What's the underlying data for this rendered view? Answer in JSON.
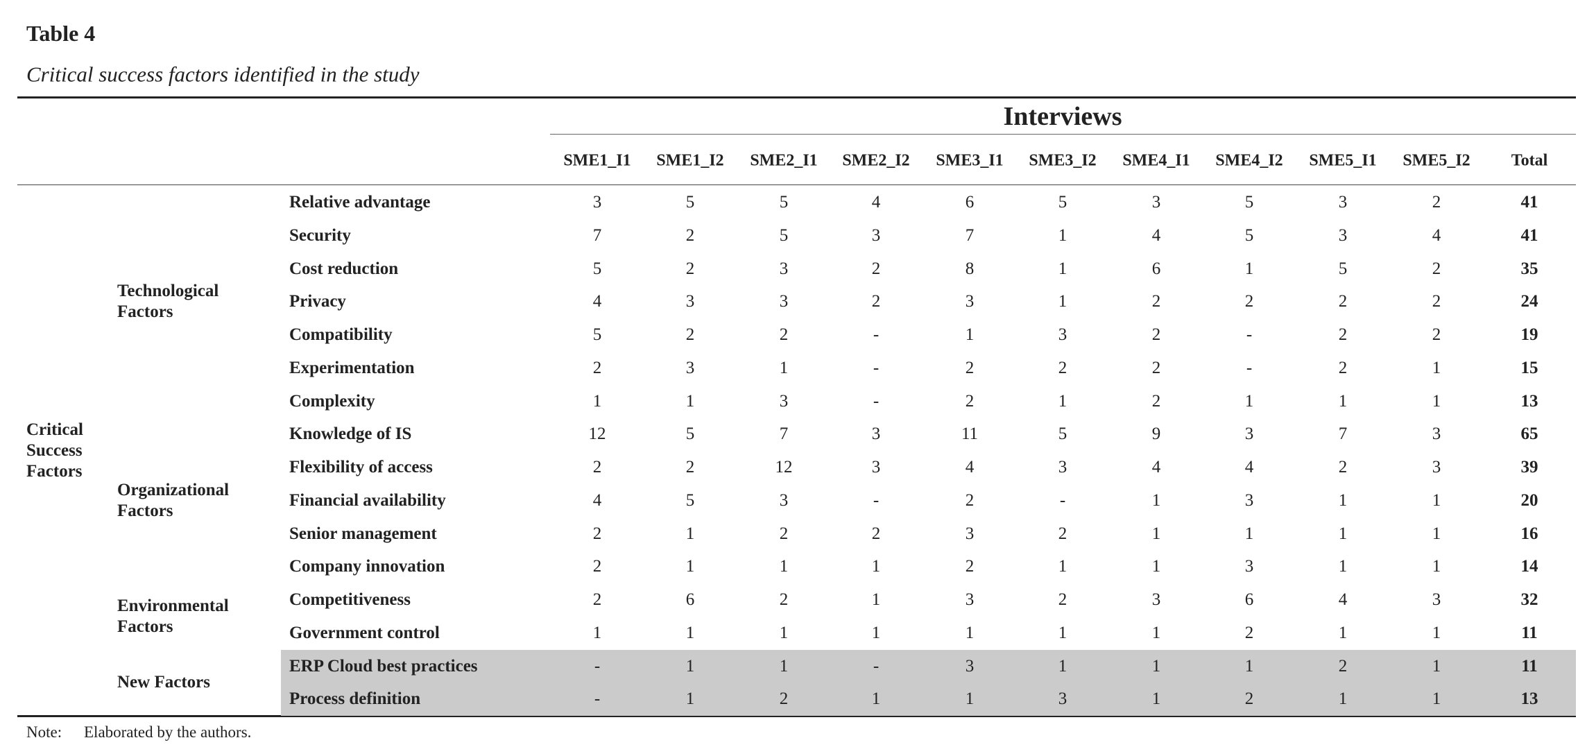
{
  "title": "Table 4",
  "subtitle": "Critical success factors identified in the study",
  "table": {
    "group_header": "Interviews",
    "columns": [
      "SME1_I1",
      "SME1_I2",
      "SME2_I1",
      "SME2_I2",
      "SME3_I1",
      "SME3_I2",
      "SME4_I1",
      "SME4_I2",
      "SME5_I1",
      "SME5_I2",
      "Total"
    ],
    "category": "Critical Success Factors",
    "groups": [
      {
        "label": "Technological Factors",
        "rows": [
          {
            "factor": "Relative advantage",
            "values": [
              3,
              5,
              5,
              4,
              6,
              5,
              3,
              5,
              3,
              2,
              41
            ]
          },
          {
            "factor": "Security",
            "values": [
              7,
              2,
              5,
              3,
              7,
              1,
              4,
              5,
              3,
              4,
              41
            ]
          },
          {
            "factor": "Cost reduction",
            "values": [
              5,
              2,
              3,
              2,
              8,
              1,
              6,
              1,
              5,
              2,
              35
            ]
          },
          {
            "factor": "Privacy",
            "values": [
              4,
              3,
              3,
              2,
              3,
              1,
              2,
              2,
              2,
              2,
              24
            ]
          },
          {
            "factor": "Compatibility",
            "values": [
              5,
              2,
              2,
              "-",
              1,
              3,
              2,
              "-",
              2,
              2,
              19
            ]
          },
          {
            "factor": "Experimentation",
            "values": [
              2,
              3,
              1,
              "-",
              2,
              2,
              2,
              "-",
              2,
              1,
              15
            ]
          },
          {
            "factor": "Complexity",
            "values": [
              1,
              1,
              3,
              "-",
              2,
              1,
              2,
              1,
              1,
              1,
              13
            ]
          }
        ]
      },
      {
        "label": "Organizational Factors",
        "rows": [
          {
            "factor": "Knowledge of IS",
            "values": [
              12,
              5,
              7,
              3,
              11,
              5,
              9,
              3,
              7,
              3,
              65
            ]
          },
          {
            "factor": "Flexibility of access",
            "values": [
              2,
              2,
              12,
              3,
              4,
              3,
              4,
              4,
              2,
              3,
              39
            ]
          },
          {
            "factor": "Financial availability",
            "values": [
              4,
              5,
              3,
              "-",
              2,
              "-",
              1,
              3,
              1,
              1,
              20
            ]
          },
          {
            "factor": "Senior management",
            "values": [
              2,
              1,
              2,
              2,
              3,
              2,
              1,
              1,
              1,
              1,
              16
            ]
          },
          {
            "factor": "Company innovation",
            "values": [
              2,
              1,
              1,
              1,
              2,
              1,
              1,
              3,
              1,
              1,
              14
            ]
          }
        ]
      },
      {
        "label": "Environmental Factors",
        "rows": [
          {
            "factor": "Competitiveness",
            "values": [
              2,
              6,
              2,
              1,
              3,
              2,
              3,
              6,
              4,
              3,
              32
            ]
          },
          {
            "factor": "Government control",
            "values": [
              1,
              1,
              1,
              1,
              1,
              1,
              1,
              2,
              1,
              1,
              11
            ]
          }
        ]
      },
      {
        "label": "New Factors",
        "shaded": true,
        "rows": [
          {
            "factor": "ERP Cloud best practices",
            "values": [
              "-",
              1,
              1,
              "-",
              3,
              1,
              1,
              1,
              2,
              1,
              11
            ]
          },
          {
            "factor": "Process definition",
            "values": [
              "-",
              1,
              2,
              1,
              1,
              3,
              1,
              2,
              1,
              1,
              13
            ]
          }
        ]
      }
    ]
  },
  "note": {
    "label": "Note:",
    "text": "Elaborated by the authors."
  }
}
